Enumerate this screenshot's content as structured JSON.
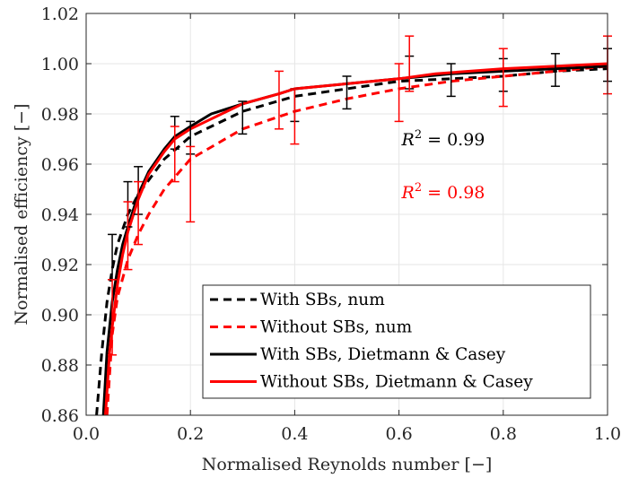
{
  "chart_data": {
    "type": "line",
    "xlabel": "Normalised Reynolds number [−]",
    "ylabel": "Normalised efficiency [−]",
    "xlim": [
      0.0,
      1.0
    ],
    "ylim": [
      0.86,
      1.02
    ],
    "xticks": [
      0.0,
      0.2,
      0.4,
      0.6,
      0.8,
      1.0
    ],
    "xtick_labels": [
      "0.0",
      "0.2",
      "0.4",
      "0.6",
      "0.8",
      "1.0"
    ],
    "yticks": [
      0.86,
      0.88,
      0.9,
      0.92,
      0.94,
      0.96,
      0.98,
      1.0,
      1.02
    ],
    "ytick_labels": [
      "0.86",
      "0.88",
      "0.90",
      "0.92",
      "0.94",
      "0.96",
      "0.98",
      "1.00",
      "1.02"
    ],
    "grid": true,
    "legend_position": "bottom-right",
    "series": [
      {
        "name": "With SBs, num",
        "color": "#000000",
        "dash": "dashed",
        "x": [
          0.02,
          0.03,
          0.04,
          0.05,
          0.06,
          0.08,
          0.1,
          0.15,
          0.2,
          0.3,
          0.4,
          0.5,
          0.6,
          0.7,
          0.8,
          0.9,
          1.0
        ],
        "y": [
          0.86,
          0.885,
          0.905,
          0.918,
          0.928,
          0.94,
          0.948,
          0.962,
          0.971,
          0.981,
          0.987,
          0.99,
          0.993,
          0.994,
          0.995,
          0.997,
          0.998
        ]
      },
      {
        "name": "Without SBs, num",
        "color": "#ff0000",
        "dash": "dashed",
        "x": [
          0.04,
          0.05,
          0.06,
          0.08,
          0.1,
          0.12,
          0.15,
          0.2,
          0.3,
          0.4,
          0.5,
          0.6,
          0.7,
          0.8,
          0.9,
          1.0
        ],
        "y": [
          0.86,
          0.892,
          0.907,
          0.922,
          0.932,
          0.94,
          0.95,
          0.962,
          0.974,
          0.981,
          0.986,
          0.99,
          0.993,
          0.995,
          0.997,
          0.999
        ]
      },
      {
        "name": "With SBs, Dietmann & Casey",
        "color": "#000000",
        "dash": "solid",
        "x": [
          0.033,
          0.04,
          0.05,
          0.06,
          0.07,
          0.08,
          0.1,
          0.12,
          0.15,
          0.17,
          0.2,
          0.24,
          0.3,
          0.37,
          0.4,
          0.5,
          0.6,
          0.7,
          0.8,
          0.9,
          1.0
        ],
        "y": [
          0.86,
          0.885,
          0.905,
          0.918,
          0.928,
          0.935,
          0.948,
          0.957,
          0.966,
          0.971,
          0.975,
          0.98,
          0.984,
          0.988,
          0.99,
          0.992,
          0.994,
          0.996,
          0.997,
          0.998,
          0.999
        ]
      },
      {
        "name": "Without SBs, Dietmann & Casey",
        "color": "#ff0000",
        "dash": "solid",
        "x": [
          0.037,
          0.045,
          0.05,
          0.06,
          0.07,
          0.08,
          0.1,
          0.12,
          0.15,
          0.17,
          0.2,
          0.3,
          0.37,
          0.4,
          0.5,
          0.6,
          0.67,
          0.8,
          1.0
        ],
        "y": [
          0.86,
          0.885,
          0.895,
          0.912,
          0.924,
          0.933,
          0.946,
          0.956,
          0.965,
          0.97,
          0.974,
          0.984,
          0.988,
          0.99,
          0.992,
          0.994,
          0.996,
          0.998,
          1.0
        ]
      }
    ],
    "error_bars": [
      {
        "color": "#000000",
        "points": [
          {
            "x": 0.05,
            "low": 0.914,
            "high": 0.932
          },
          {
            "x": 0.08,
            "low": 0.935,
            "high": 0.953
          },
          {
            "x": 0.1,
            "low": 0.94,
            "high": 0.959
          },
          {
            "x": 0.17,
            "low": 0.966,
            "high": 0.979
          },
          {
            "x": 0.2,
            "low": 0.964,
            "high": 0.977
          },
          {
            "x": 0.3,
            "low": 0.972,
            "high": 0.985
          },
          {
            "x": 0.4,
            "low": 0.977,
            "high": 0.99
          },
          {
            "x": 0.5,
            "low": 0.982,
            "high": 0.995
          },
          {
            "x": 0.62,
            "low": 0.99,
            "high": 1.003
          },
          {
            "x": 0.7,
            "low": 0.987,
            "high": 1.0
          },
          {
            "x": 0.8,
            "low": 0.989,
            "high": 1.002
          },
          {
            "x": 0.9,
            "low": 0.991,
            "high": 1.004
          },
          {
            "x": 1.0,
            "low": 0.993,
            "high": 1.006
          }
        ]
      },
      {
        "color": "#ff0000",
        "points": [
          {
            "x": 0.05,
            "low": 0.884,
            "high": 0.914
          },
          {
            "x": 0.08,
            "low": 0.918,
            "high": 0.945
          },
          {
            "x": 0.1,
            "low": 0.928,
            "high": 0.953
          },
          {
            "x": 0.17,
            "low": 0.953,
            "high": 0.975
          },
          {
            "x": 0.2,
            "low": 0.937,
            "high": 0.967
          },
          {
            "x": 0.37,
            "low": 0.974,
            "high": 0.997
          },
          {
            "x": 0.4,
            "low": 0.968,
            "high": 0.99
          },
          {
            "x": 0.6,
            "low": 0.977,
            "high": 1.0
          },
          {
            "x": 0.62,
            "low": 0.989,
            "high": 1.011
          },
          {
            "x": 0.8,
            "low": 0.983,
            "high": 1.006
          },
          {
            "x": 1.0,
            "low": 0.988,
            "high": 1.011
          }
        ]
      }
    ],
    "annotations": [
      {
        "name": "r2-black",
        "var": "R",
        "sup": "2",
        "text": " = 0.99",
        "color": "#000000",
        "x": 0.605,
        "y": 0.9675
      },
      {
        "name": "r2-red",
        "var": "R",
        "sup": "2",
        "text": " = 0.98",
        "color": "#ff0000",
        "x": 0.605,
        "y": 0.9465
      }
    ]
  }
}
